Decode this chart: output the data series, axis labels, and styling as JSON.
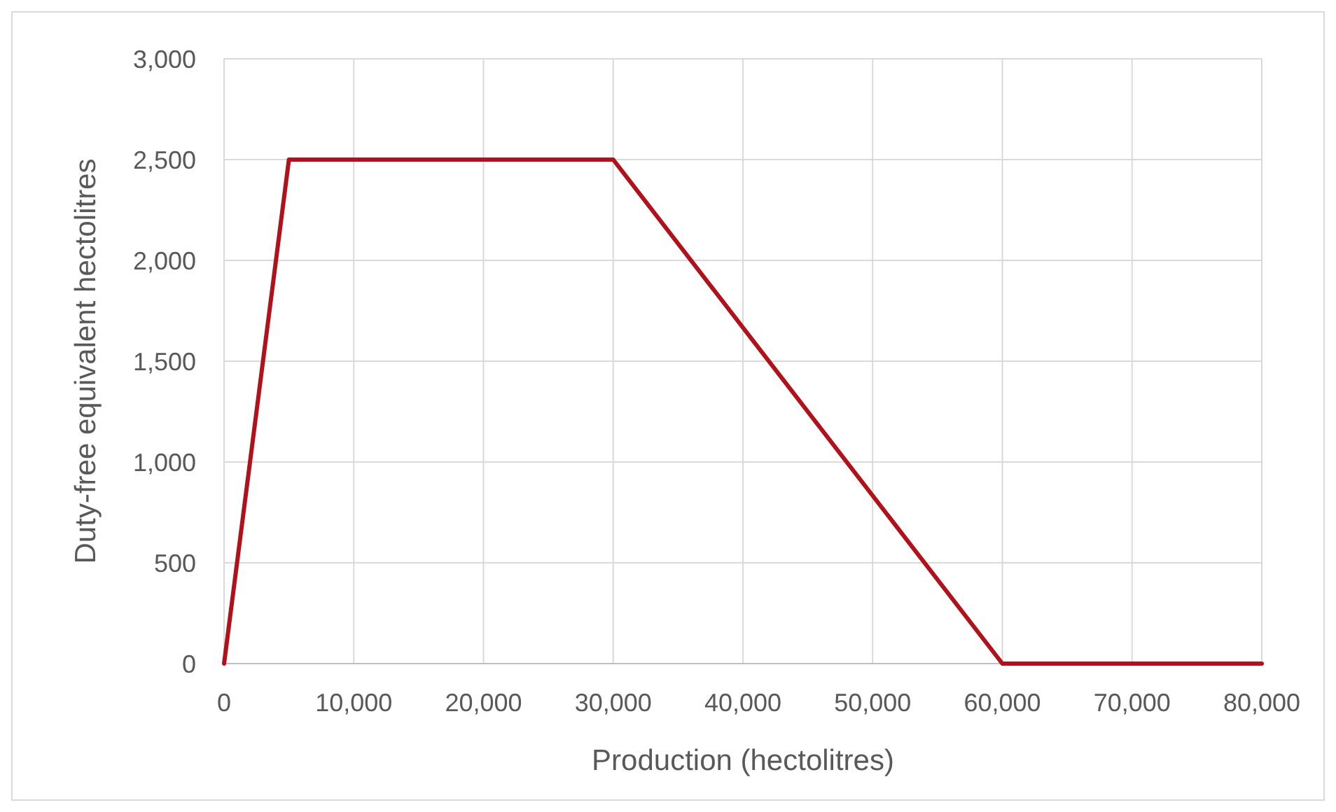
{
  "chart_data": {
    "type": "line",
    "xlabel": "Production (hectolitres)",
    "ylabel": "Duty-free equivalent hectolitres",
    "x": [
      0,
      5000,
      30000,
      60000,
      80000
    ],
    "series": [
      {
        "color": "#b0111b",
        "values": [
          0,
          2500,
          2500,
          0,
          0
        ]
      }
    ],
    "xlim": [
      0,
      80000
    ],
    "xticks": [
      {
        "value": 0,
        "label": "0"
      },
      {
        "value": 10000,
        "label": "10,000"
      },
      {
        "value": 20000,
        "label": "20,000"
      },
      {
        "value": 30000,
        "label": "30,000"
      },
      {
        "value": 40000,
        "label": "40,000"
      },
      {
        "value": 50000,
        "label": "50,000"
      },
      {
        "value": 60000,
        "label": "60,000"
      },
      {
        "value": 70000,
        "label": "70,000"
      },
      {
        "value": 80000,
        "label": "80,000"
      }
    ],
    "ylim": [
      0,
      3000
    ],
    "yticks": [
      {
        "value": 0,
        "label": "0"
      },
      {
        "value": 500,
        "label": "500"
      },
      {
        "value": 1000,
        "label": "1,000"
      },
      {
        "value": 1500,
        "label": "1,500"
      },
      {
        "value": 2000,
        "label": "2,000"
      },
      {
        "value": 2500,
        "label": "2,500"
      },
      {
        "value": 3000,
        "label": "3,000"
      }
    ],
    "grid": true,
    "line_style": "solid",
    "marker": "none"
  }
}
